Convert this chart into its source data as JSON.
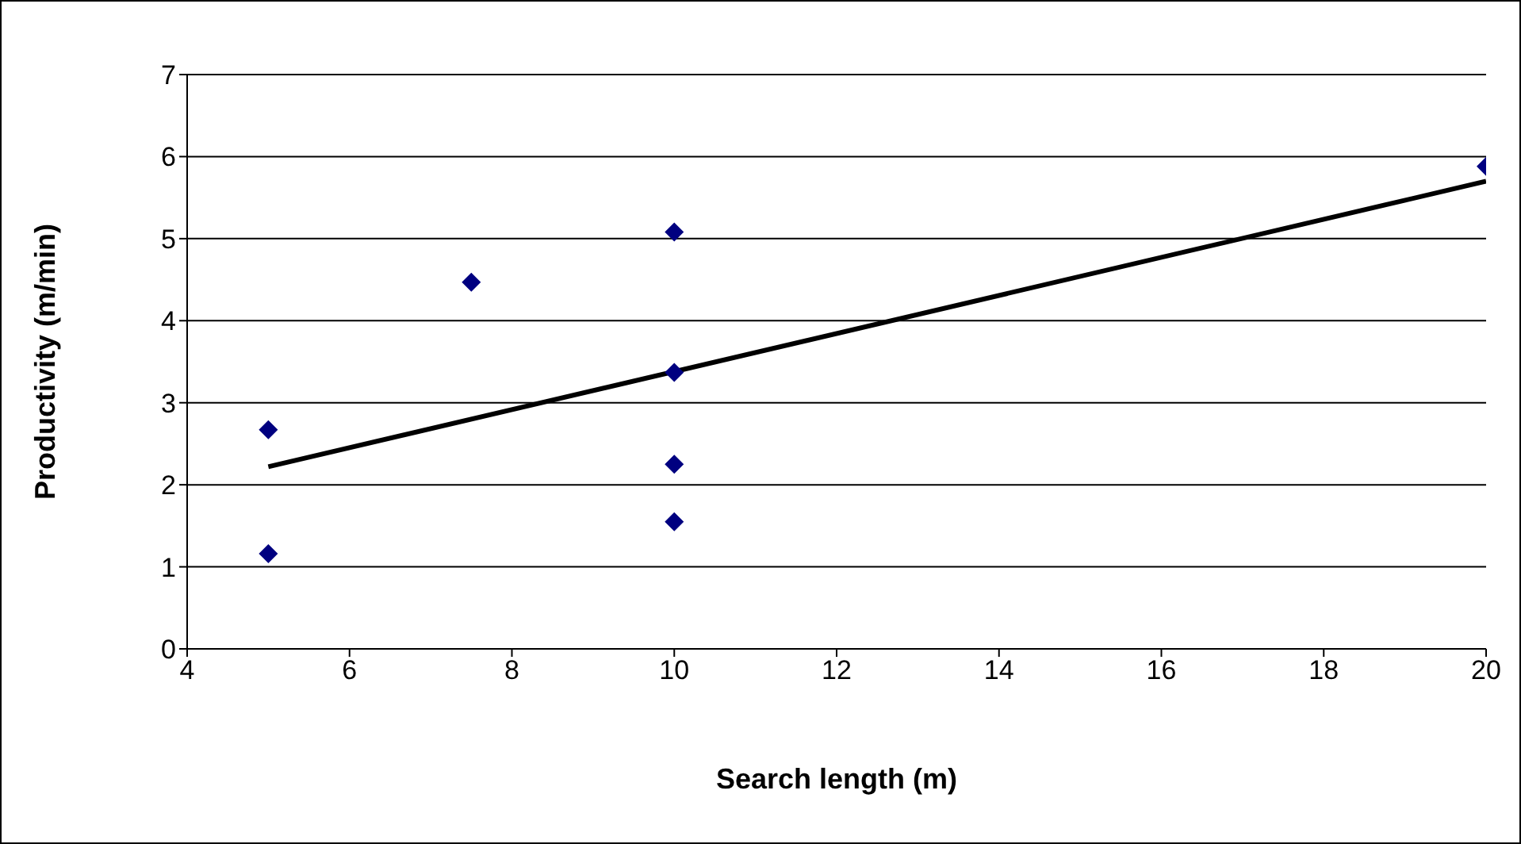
{
  "chart_data": {
    "type": "scatter",
    "xlabel": "Search length (m)",
    "ylabel": "Productivity (m/min)",
    "xlim": [
      4,
      20
    ],
    "xticks": [
      4,
      6,
      8,
      10,
      12,
      14,
      16,
      18,
      20
    ],
    "ylim": [
      0,
      7
    ],
    "yticks": [
      0,
      1,
      2,
      3,
      4,
      5,
      6,
      7
    ],
    "grid": "y",
    "marker": "diamond",
    "series": [
      {
        "color": "#000080",
        "x": [
          5,
          5,
          7.5,
          10,
          10,
          10,
          10,
          20
        ],
        "values": [
          1.16,
          2.67,
          4.47,
          5.08,
          3.37,
          2.25,
          1.55,
          5.88
        ]
      },
      {
        "type": "line",
        "color": "#000000",
        "marker": "none",
        "x": [
          5,
          20
        ],
        "values": [
          2.22,
          5.7
        ]
      }
    ]
  }
}
